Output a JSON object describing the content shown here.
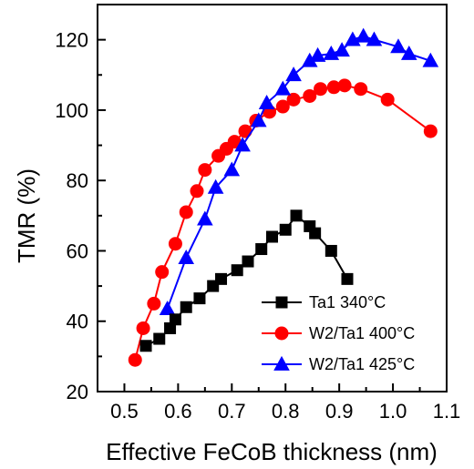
{
  "chart_data": {
    "type": "line",
    "xlabel": "Effective FeCoB thickness (nm)",
    "ylabel": "TMR (%)",
    "xlim": [
      0.45,
      1.1
    ],
    "ylim": [
      20,
      130
    ],
    "x_ticks": [
      0.5,
      0.6,
      0.7,
      0.8,
      0.9,
      1.0,
      1.1
    ],
    "x_tick_labels": [
      "0.5",
      "0.6",
      "0.7",
      "0.8",
      "0.9",
      "1.0",
      "1.1"
    ],
    "y_ticks": [
      20,
      40,
      60,
      80,
      100,
      120
    ],
    "y_tick_labels": [
      "20",
      "40",
      "60",
      "80",
      "100",
      "120"
    ],
    "grid": false,
    "legend_position": "bottom-right",
    "series": [
      {
        "name": "Ta1 340°C",
        "color": "#000000",
        "marker": "square",
        "x": [
          0.54,
          0.565,
          0.585,
          0.595,
          0.615,
          0.64,
          0.665,
          0.68,
          0.71,
          0.73,
          0.755,
          0.775,
          0.8,
          0.82,
          0.845,
          0.855,
          0.885,
          0.915
        ],
        "y": [
          33,
          35,
          38,
          40.5,
          44,
          46.5,
          50,
          52,
          54.5,
          57,
          60.5,
          64,
          66,
          70,
          67,
          65,
          60,
          52
        ]
      },
      {
        "name": "W2/Ta1 400°C",
        "color": "#ff0000",
        "marker": "circle",
        "x": [
          0.52,
          0.535,
          0.555,
          0.57,
          0.595,
          0.615,
          0.635,
          0.65,
          0.675,
          0.69,
          0.705,
          0.725,
          0.745,
          0.77,
          0.795,
          0.815,
          0.845,
          0.865,
          0.89,
          0.91,
          0.94,
          0.99,
          1.07
        ],
        "y": [
          29,
          38,
          45,
          54,
          62,
          71,
          77,
          83,
          87,
          89,
          91,
          94,
          97,
          99.5,
          101,
          103,
          104,
          106,
          106.5,
          107,
          106,
          103,
          94
        ]
      },
      {
        "name": "W2/Ta1 425°C",
        "color": "#0000ff",
        "marker": "triangle",
        "x": [
          0.58,
          0.615,
          0.65,
          0.67,
          0.7,
          0.72,
          0.75,
          0.765,
          0.795,
          0.815,
          0.845,
          0.86,
          0.885,
          0.905,
          0.925,
          0.945,
          0.965,
          1.01,
          1.03,
          1.07
        ],
        "y": [
          43.5,
          58,
          69,
          78,
          83,
          90,
          97,
          102,
          106,
          110,
          114,
          115.5,
          116,
          117,
          120,
          121,
          120,
          118,
          116,
          114
        ]
      }
    ]
  }
}
